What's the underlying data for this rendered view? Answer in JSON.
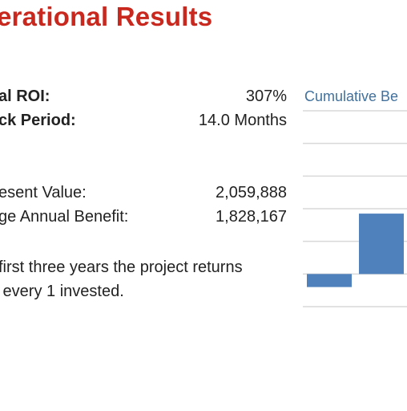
{
  "header": {
    "title": "erational Results"
  },
  "metrics": [
    {
      "label": "al ROI:",
      "value": "307%",
      "bold": true
    },
    {
      "label": "ck Period:",
      "value": "14.0 Months",
      "bold": true
    },
    {
      "label": "esent Value:",
      "value": "2,059,888",
      "bold": false
    },
    {
      "label": "ge Annual Benefit:",
      "value": "1,828,167",
      "bold": false
    }
  ],
  "summary": {
    "line1": "first three years the project returns",
    "line2": " every 1 invested."
  },
  "chart_data": {
    "type": "bar",
    "title": "Cumulative Be",
    "bar_color": "#4f81bd",
    "grid": true,
    "grid_color": "#d9d9d9",
    "ylim": [
      -1,
      5
    ],
    "categories": [
      "",
      ""
    ],
    "values": [
      -0.4,
      1.85
    ]
  }
}
